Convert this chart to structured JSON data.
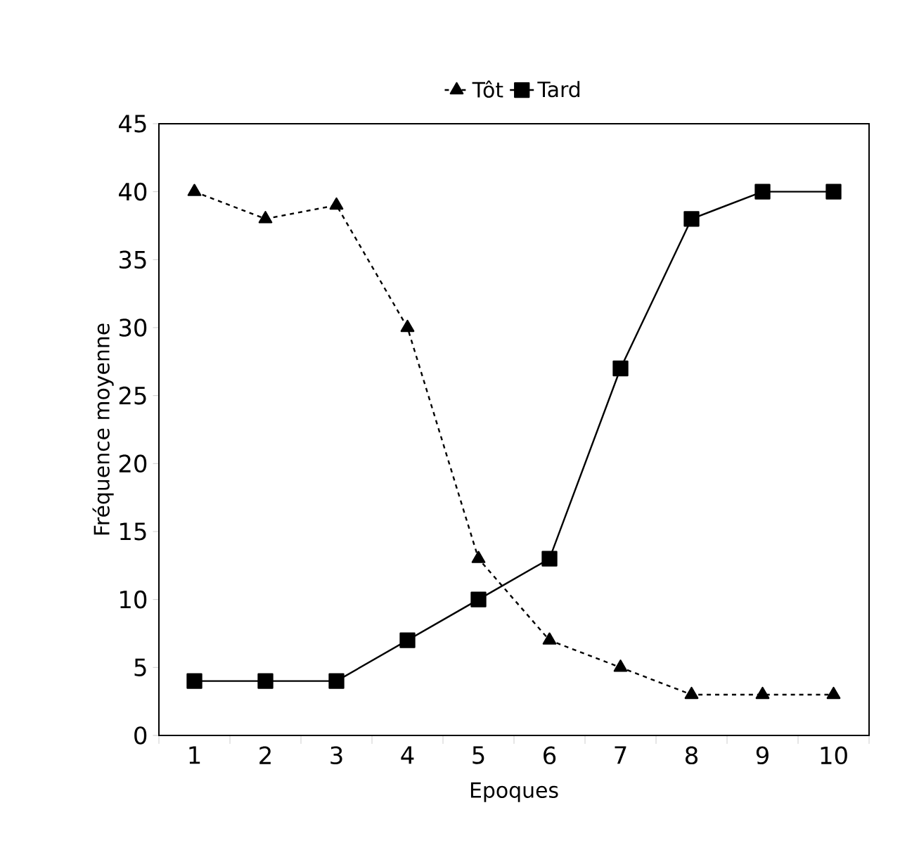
{
  "chart_data": {
    "type": "line",
    "xlabel": "Epoques",
    "ylabel": "Fréquence moyenne",
    "categories": [
      "1",
      "2",
      "3",
      "4",
      "5",
      "6",
      "7",
      "8",
      "9",
      "10"
    ],
    "series": [
      {
        "name": "Tôt",
        "color": "#000000",
        "marker": "triangle",
        "line_style": "dashed",
        "values": [
          40,
          38,
          39,
          30,
          13,
          7,
          5,
          3,
          3,
          3
        ]
      },
      {
        "name": "Tard",
        "color": "#000000",
        "marker": "square",
        "line_style": "solid",
        "values": [
          4,
          4,
          4,
          7,
          10,
          13,
          27,
          38,
          40,
          40
        ]
      }
    ],
    "ylim": [
      0,
      45
    ],
    "yticks": [
      0,
      5,
      10,
      15,
      20,
      25,
      30,
      35,
      40,
      45
    ],
    "grid": false,
    "legend": "top"
  }
}
